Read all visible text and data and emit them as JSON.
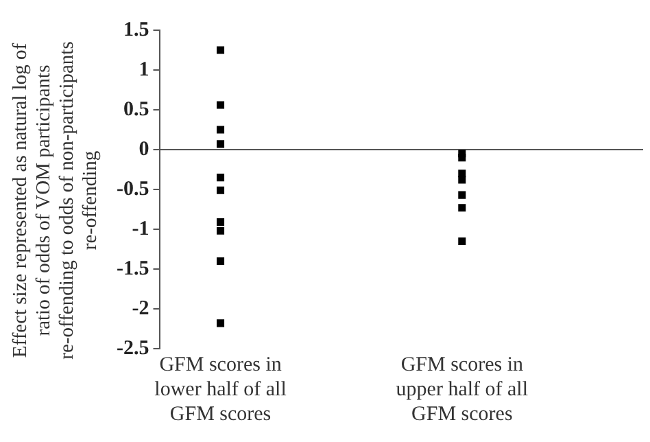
{
  "chart_data": {
    "type": "scatter",
    "ylabel": "Effect size represented as natural log of ratio of odds of VOM participants re-offending to odds of non-participants re-offending",
    "categories": [
      "GFM scores in lower half of all GFM scores",
      null,
      "GFM scores in upper half of all GFM scores",
      null
    ],
    "series": [
      {
        "color": "#000000",
        "x": [
          "GFM scores in lower half of all GFM scores",
          "GFM scores in lower half of all GFM scores",
          "GFM scores in lower half of all GFM scores",
          "GFM scores in lower half of all GFM scores",
          "GFM scores in lower half of all GFM scores",
          "GFM scores in lower half of all GFM scores",
          "GFM scores in lower half of all GFM scores",
          "GFM scores in lower half of all GFM scores",
          "GFM scores in lower half of all GFM scores",
          "GFM scores in lower half of all GFM scores",
          "GFM scores in upper half of all GFM scores",
          "GFM scores in upper half of all GFM scores",
          "GFM scores in upper half of all GFM scores",
          "GFM scores in upper half of all GFM scores",
          "GFM scores in upper half of all GFM scores",
          "GFM scores in upper half of all GFM scores",
          "GFM scores in upper half of all GFM scores"
        ],
        "values": [
          1.25,
          0.56,
          0.25,
          0.07,
          -0.35,
          -0.51,
          -0.91,
          -1.02,
          -1.4,
          -2.18,
          -0.05,
          -0.1,
          -0.3,
          -0.38,
          -0.57,
          -0.73,
          -1.15
        ]
      }
    ],
    "marker": "square",
    "ylim": [
      -2.5,
      1.5
    ],
    "yticks": [
      -2.5,
      -2,
      -1.5,
      -1,
      -0.5,
      0,
      0.5,
      1,
      1.5
    ],
    "ref_lines": [
      {
        "axis": "y",
        "value": 0,
        "color": "#555555"
      }
    ],
    "grid": false,
    "legend": false
  }
}
